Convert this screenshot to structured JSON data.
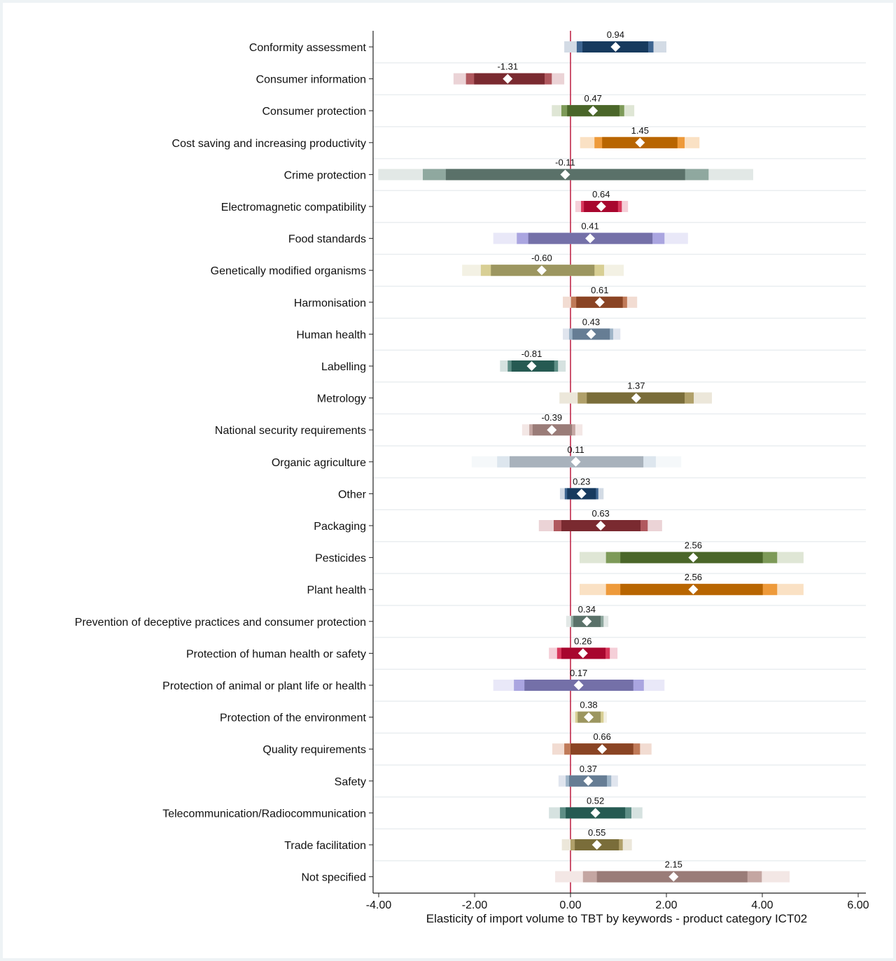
{
  "chart_data": {
    "type": "forest-interval",
    "xlabel": "Elasticity of import volume to TBT by keywords - product category ICT02",
    "xlim": [
      -4.2,
      6.1
    ],
    "xticks": [
      -4,
      -2,
      0,
      2,
      4,
      6
    ],
    "xtick_labels": [
      "-4.00",
      "-2.00",
      "0.00",
      "2.00",
      "4.00",
      "6.00"
    ],
    "reference_line": 0,
    "reference_line_color": "#c0284a",
    "grid": "horizontal",
    "point_marker": "white diamond",
    "palette": [
      [
        "#173a5e",
        "#3e6590",
        "#d3dbe5"
      ],
      [
        "#7a2a30",
        "#b0585e",
        "#ebd3d6"
      ],
      [
        "#4a6629",
        "#7d9a58",
        "#dfe6d5"
      ],
      [
        "#b86500",
        "#ee9a3a",
        "#fae1c4"
      ],
      [
        "#5a7169",
        "#8fa89f",
        "#e2e8e6"
      ],
      [
        "#a8062e",
        "#d8385c",
        "#f5cfd8"
      ],
      [
        "#7470a8",
        "#aaa5e0",
        "#e9e8f8"
      ],
      [
        "#9c9660",
        "#d8cf94",
        "#f3f1e4"
      ],
      [
        "#8a4424",
        "#c07a58",
        "#f2dcd2"
      ],
      [
        "#667d94",
        "#9fb5c8",
        "#e0e5ee"
      ],
      [
        "#265a52",
        "#5e8e86",
        "#d6e2e0"
      ],
      [
        "#7a6d3a",
        "#b0a06a",
        "#ece7da"
      ],
      [
        "#9a7c78",
        "#c4a6a2",
        "#f3e7e5"
      ],
      [
        "#a8b2bc",
        "#dde6ee",
        "#f5f8fa"
      ]
    ],
    "rows": [
      {
        "label": "Conformity assessment",
        "estimate": 0.94,
        "label_text": "0.94",
        "inner": [
          0.25,
          1.62
        ],
        "mid": [
          0.13,
          1.73
        ],
        "outer": [
          -0.13,
          2.0
        ]
      },
      {
        "label": "Consumer information",
        "estimate": -1.31,
        "label_text": "-1.31",
        "inner": [
          -2.01,
          -0.54
        ],
        "mid": [
          -2.18,
          -0.39
        ],
        "outer": [
          -2.44,
          -0.13
        ]
      },
      {
        "label": "Consumer protection",
        "estimate": 0.47,
        "label_text": "0.47",
        "inner": [
          -0.07,
          1.02
        ],
        "mid": [
          -0.19,
          1.12
        ],
        "outer": [
          -0.39,
          1.33
        ]
      },
      {
        "label": "Cost saving and increasing productivity",
        "estimate": 1.45,
        "label_text": "1.45",
        "inner": [
          0.66,
          2.23
        ],
        "mid": [
          0.5,
          2.38
        ],
        "outer": [
          0.2,
          2.69
        ]
      },
      {
        "label": "Crime protection",
        "estimate": -0.11,
        "label_text": "-0.11",
        "inner": [
          -2.6,
          2.39
        ],
        "mid": [
          -3.08,
          2.88
        ],
        "outer": [
          -4.01,
          3.81
        ]
      },
      {
        "label": "Electromagnetic compatibility",
        "estimate": 0.64,
        "label_text": "0.64",
        "inner": [
          0.28,
          0.99
        ],
        "mid": [
          0.22,
          1.07
        ],
        "outer": [
          0.1,
          1.2
        ]
      },
      {
        "label": "Food standards",
        "estimate": 0.41,
        "label_text": "0.41",
        "inner": [
          -0.88,
          1.71
        ],
        "mid": [
          -1.12,
          1.96
        ],
        "outer": [
          -1.61,
          2.45
        ]
      },
      {
        "label": "Genetically modified organisms",
        "estimate": -0.6,
        "label_text": "-0.60",
        "inner": [
          -1.66,
          0.5
        ],
        "mid": [
          -1.87,
          0.7
        ],
        "outer": [
          -2.26,
          1.11
        ]
      },
      {
        "label": "Harmonisation",
        "estimate": 0.61,
        "label_text": "0.61",
        "inner": [
          0.12,
          1.09
        ],
        "mid": [
          0.01,
          1.18
        ],
        "outer": [
          -0.16,
          1.39
        ]
      },
      {
        "label": "Human health",
        "estimate": 0.43,
        "label_text": "0.43",
        "inner": [
          0.04,
          0.82
        ],
        "mid": [
          -0.03,
          0.89
        ],
        "outer": [
          -0.16,
          1.04
        ]
      },
      {
        "label": "Labelling",
        "estimate": -0.81,
        "label_text": "-0.81",
        "inner": [
          -1.23,
          -0.34
        ],
        "mid": [
          -1.31,
          -0.26
        ],
        "outer": [
          -1.47,
          -0.1
        ]
      },
      {
        "label": "Metrology",
        "estimate": 1.37,
        "label_text": "1.37",
        "inner": [
          0.34,
          2.38
        ],
        "mid": [
          0.15,
          2.57
        ],
        "outer": [
          -0.23,
          2.95
        ]
      },
      {
        "label": "National security requirements",
        "estimate": -0.39,
        "label_text": "-0.39",
        "inner": [
          -0.79,
          0.03
        ],
        "mid": [
          -0.86,
          0.1
        ],
        "outer": [
          -1.01,
          0.25
        ]
      },
      {
        "label": "Organic agriculture",
        "estimate": 0.11,
        "label_text": "0.11",
        "inner": [
          -1.27,
          1.52
        ],
        "mid": [
          -1.53,
          1.78
        ],
        "outer": [
          -2.06,
          2.31
        ]
      },
      {
        "label": "Other",
        "estimate": 0.23,
        "label_text": "0.23",
        "inner": [
          -0.07,
          0.53
        ],
        "mid": [
          -0.12,
          0.58
        ],
        "outer": [
          -0.22,
          0.69
        ]
      },
      {
        "label": "Packaging",
        "estimate": 0.63,
        "label_text": "0.63",
        "inner": [
          -0.19,
          1.46
        ],
        "mid": [
          -0.35,
          1.61
        ],
        "outer": [
          -0.66,
          1.91
        ]
      },
      {
        "label": "Pesticides",
        "estimate": 2.56,
        "label_text": "2.56",
        "inner": [
          1.04,
          4.01
        ],
        "mid": [
          0.74,
          4.31
        ],
        "outer": [
          0.19,
          4.86
        ]
      },
      {
        "label": "Plant health",
        "estimate": 2.56,
        "label_text": "2.56",
        "inner": [
          1.04,
          4.01
        ],
        "mid": [
          0.74,
          4.31
        ],
        "outer": [
          0.19,
          4.86
        ]
      },
      {
        "label": "Prevention of deceptive practices and consumer protection",
        "estimate": 0.34,
        "label_text": "0.34",
        "inner": [
          0.06,
          0.63
        ],
        "mid": [
          0.01,
          0.69
        ],
        "outer": [
          -0.09,
          0.79
        ]
      },
      {
        "label": "Protection of human health or safety",
        "estimate": 0.26,
        "label_text": "0.26",
        "inner": [
          -0.19,
          0.73
        ],
        "mid": [
          -0.28,
          0.82
        ],
        "outer": [
          -0.45,
          0.98
        ]
      },
      {
        "label": "Protection of animal or plant life or health",
        "estimate": 0.17,
        "label_text": "0.17",
        "inner": [
          -0.96,
          1.31
        ],
        "mid": [
          -1.18,
          1.53
        ],
        "outer": [
          -1.61,
          1.96
        ]
      },
      {
        "label": "Protection of the environment",
        "estimate": 0.38,
        "label_text": "0.38",
        "inner": [
          0.15,
          0.63
        ],
        "mid": [
          0.1,
          0.69
        ],
        "outer": [
          0.01,
          0.76
        ]
      },
      {
        "label": "Quality requirements",
        "estimate": 0.66,
        "label_text": "0.66",
        "inner": [
          0.0,
          1.31
        ],
        "mid": [
          -0.13,
          1.45
        ],
        "outer": [
          -0.38,
          1.69
        ]
      },
      {
        "label": "Safety",
        "estimate": 0.37,
        "label_text": "0.37",
        "inner": [
          -0.03,
          0.76
        ],
        "mid": [
          -0.1,
          0.85
        ],
        "outer": [
          -0.25,
          0.99
        ]
      },
      {
        "label": "Telecommunication/Radiocommunication",
        "estimate": 0.52,
        "label_text": "0.52",
        "inner": [
          -0.1,
          1.14
        ],
        "mid": [
          -0.22,
          1.27
        ],
        "outer": [
          -0.45,
          1.5
        ]
      },
      {
        "label": "Trade facilitation",
        "estimate": 0.55,
        "label_text": "0.55",
        "inner": [
          0.09,
          1.01
        ],
        "mid": [
          0.0,
          1.09
        ],
        "outer": [
          -0.18,
          1.28
        ]
      },
      {
        "label": "Not specified",
        "estimate": 2.15,
        "label_text": "2.15",
        "inner": [
          0.55,
          3.69
        ],
        "mid": [
          0.26,
          3.99
        ],
        "outer": [
          -0.32,
          4.57
        ]
      }
    ]
  }
}
